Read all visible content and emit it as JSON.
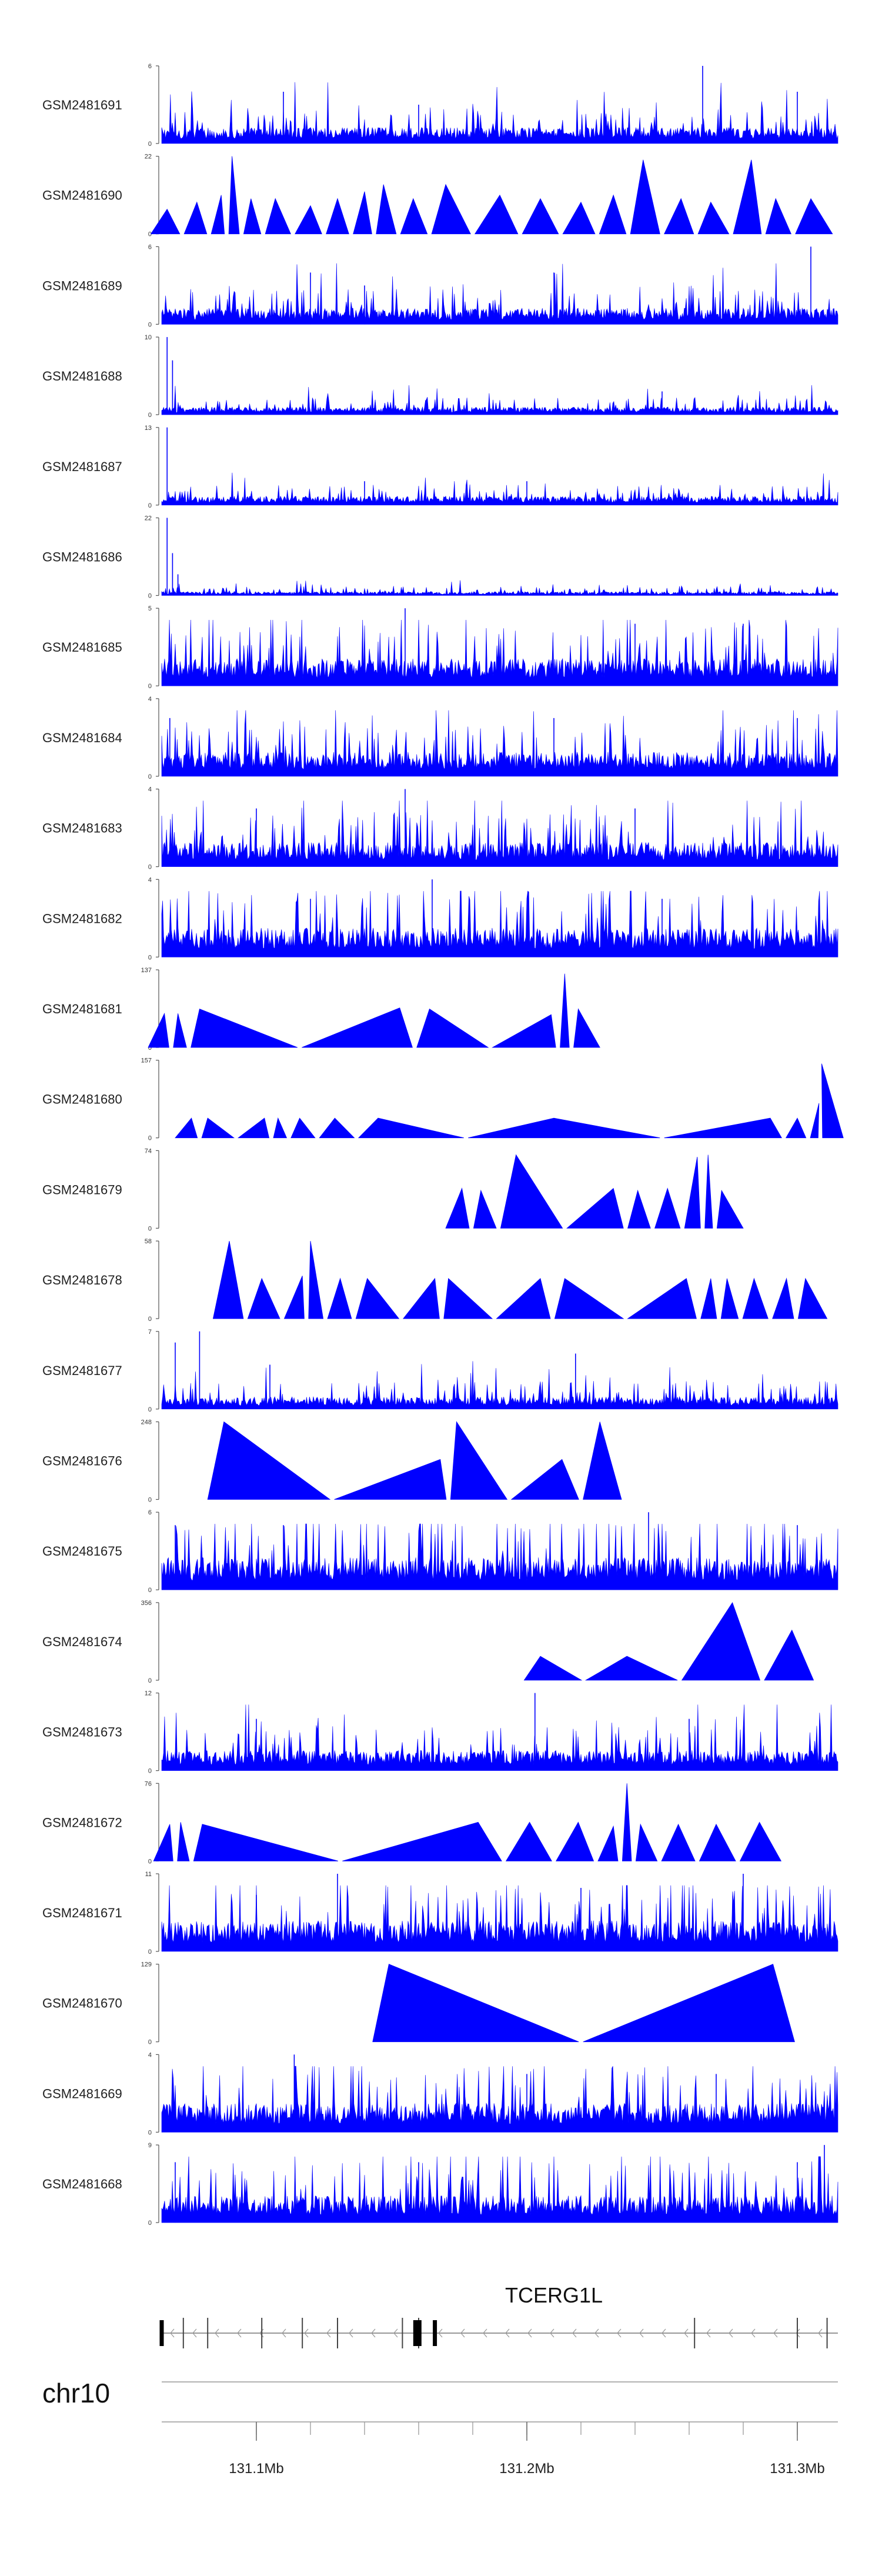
{
  "chart_data": {
    "type": "area",
    "title": "",
    "xlabel": "",
    "chromosome": "chr10",
    "xlim": [
      131.065,
      131.315
    ],
    "axis_ticks": [
      131.1,
      131.2,
      131.3
    ],
    "axis_tick_labels": [
      "131.1Mb",
      "131.2Mb",
      "131.3Mb"
    ],
    "color": "#0000ff",
    "gene": {
      "name": "TCERG1L",
      "strand": "-",
      "start": 131.065,
      "end": 131.315,
      "exons": [
        131.065,
        131.073,
        131.082,
        131.102,
        131.117,
        131.13,
        131.154,
        131.166,
        131.16,
        131.262,
        131.3,
        131.311
      ]
    },
    "tracks": [
      {
        "sample": "GSM2481691",
        "ymax": 6,
        "ylim_label": [
          "0",
          "6"
        ],
        "style": "dense",
        "base": 1.0,
        "peaks": [
          {
            "x": 131.265,
            "y": 6
          },
          {
            "x": 131.11,
            "y": 4
          },
          {
            "x": 131.3,
            "y": 4
          },
          {
            "x": 131.16,
            "y": 3
          }
        ]
      },
      {
        "sample": "GSM2481690",
        "ymax": 22,
        "ylim_label": [
          "0",
          "22"
        ],
        "style": "triangles",
        "peaks": [
          {
            "x": 131.067,
            "y": 7
          },
          {
            "x": 131.078,
            "y": 9
          },
          {
            "x": 131.087,
            "y": 11
          },
          {
            "x": 131.091,
            "y": 22
          },
          {
            "x": 131.098,
            "y": 10
          },
          {
            "x": 131.107,
            "y": 10
          },
          {
            "x": 131.12,
            "y": 8
          },
          {
            "x": 131.13,
            "y": 10
          },
          {
            "x": 131.14,
            "y": 12
          },
          {
            "x": 131.147,
            "y": 14
          },
          {
            "x": 131.158,
            "y": 10
          },
          {
            "x": 131.17,
            "y": 14
          },
          {
            "x": 131.19,
            "y": 11
          },
          {
            "x": 131.205,
            "y": 10
          },
          {
            "x": 131.22,
            "y": 9
          },
          {
            "x": 131.232,
            "y": 11
          },
          {
            "x": 131.243,
            "y": 21
          },
          {
            "x": 131.257,
            "y": 10
          },
          {
            "x": 131.268,
            "y": 9
          },
          {
            "x": 131.283,
            "y": 21
          },
          {
            "x": 131.292,
            "y": 10
          },
          {
            "x": 131.305,
            "y": 10
          }
        ]
      },
      {
        "sample": "GSM2481689",
        "ymax": 6,
        "ylim_label": [
          "0",
          "6"
        ],
        "style": "dense",
        "base": 1.0,
        "peaks": [
          {
            "x": 131.305,
            "y": 6
          },
          {
            "x": 131.12,
            "y": 4
          },
          {
            "x": 131.21,
            "y": 4
          },
          {
            "x": 131.14,
            "y": 3
          }
        ]
      },
      {
        "sample": "GSM2481688",
        "ymax": 10,
        "ylim_label": [
          "0",
          "10"
        ],
        "style": "dense",
        "base": 0.8,
        "peaks": [
          {
            "x": 131.067,
            "y": 10
          },
          {
            "x": 131.069,
            "y": 7
          },
          {
            "x": 131.25,
            "y": 3
          }
        ]
      },
      {
        "sample": "GSM2481687",
        "ymax": 13,
        "ylim_label": [
          "0",
          "13"
        ],
        "style": "dense",
        "base": 1.2,
        "peaks": [
          {
            "x": 131.067,
            "y": 13
          },
          {
            "x": 131.14,
            "y": 4
          },
          {
            "x": 131.2,
            "y": 4
          }
        ]
      },
      {
        "sample": "GSM2481686",
        "ymax": 22,
        "ylim_label": [
          "0",
          "22"
        ],
        "style": "dense",
        "base": 0.9,
        "peaks": [
          {
            "x": 131.067,
            "y": 22
          },
          {
            "x": 131.069,
            "y": 12
          },
          {
            "x": 131.071,
            "y": 6
          }
        ]
      },
      {
        "sample": "GSM2481685",
        "ymax": 5,
        "ylim_label": [
          "0",
          "5"
        ],
        "style": "dense",
        "base": 1.4,
        "peaks": [
          {
            "x": 131.155,
            "y": 5
          },
          {
            "x": 131.24,
            "y": 4
          },
          {
            "x": 131.28,
            "y": 4
          }
        ]
      },
      {
        "sample": "GSM2481684",
        "ymax": 4,
        "ylim_label": [
          "0",
          "4"
        ],
        "style": "dense",
        "base": 1.0,
        "peaks": [
          {
            "x": 131.068,
            "y": 3
          },
          {
            "x": 131.21,
            "y": 3
          },
          {
            "x": 131.3,
            "y": 3
          }
        ]
      },
      {
        "sample": "GSM2481683",
        "ymax": 4,
        "ylim_label": [
          "0",
          "4"
        ],
        "style": "dense",
        "base": 1.0,
        "peaks": [
          {
            "x": 131.155,
            "y": 4
          },
          {
            "x": 131.24,
            "y": 3
          },
          {
            "x": 131.1,
            "y": 3
          }
        ]
      },
      {
        "sample": "GSM2481682",
        "ymax": 4,
        "ylim_label": [
          "0",
          "4"
        ],
        "style": "dense",
        "base": 1.2,
        "peaks": [
          {
            "x": 131.165,
            "y": 4
          },
          {
            "x": 131.12,
            "y": 3
          },
          {
            "x": 131.25,
            "y": 3
          }
        ]
      },
      {
        "sample": "GSM2481681",
        "ymax": 137,
        "ylim_label": [
          "0",
          "137"
        ],
        "style": "triangles",
        "peaks": [
          {
            "x": 131.066,
            "y": 60
          },
          {
            "x": 131.071,
            "y": 60
          },
          {
            "x": 131.079,
            "y": 68
          },
          {
            "x": 131.153,
            "y": 70
          },
          {
            "x": 131.164,
            "y": 68
          },
          {
            "x": 131.209,
            "y": 58
          },
          {
            "x": 131.214,
            "y": 130
          },
          {
            "x": 131.219,
            "y": 68
          }
        ]
      },
      {
        "sample": "GSM2481680",
        "ymax": 157,
        "ylim_label": [
          "0",
          "157"
        ],
        "style": "triangles",
        "peaks": [
          {
            "x": 131.076,
            "y": 40
          },
          {
            "x": 131.082,
            "y": 40
          },
          {
            "x": 131.103,
            "y": 40
          },
          {
            "x": 131.108,
            "y": 40
          },
          {
            "x": 131.116,
            "y": 40
          },
          {
            "x": 131.129,
            "y": 40
          },
          {
            "x": 131.145,
            "y": 40
          },
          {
            "x": 131.21,
            "y": 40
          },
          {
            "x": 131.29,
            "y": 40
          },
          {
            "x": 131.3,
            "y": 40
          },
          {
            "x": 131.308,
            "y": 70
          },
          {
            "x": 131.309,
            "y": 150
          }
        ]
      },
      {
        "sample": "GSM2481679",
        "ymax": 74,
        "ylim_label": [
          "0",
          "74"
        ],
        "style": "triangles",
        "peaks": [
          {
            "x": 131.176,
            "y": 38
          },
          {
            "x": 131.183,
            "y": 36
          },
          {
            "x": 131.196,
            "y": 70
          },
          {
            "x": 131.232,
            "y": 38
          },
          {
            "x": 131.241,
            "y": 36
          },
          {
            "x": 131.252,
            "y": 38
          },
          {
            "x": 131.263,
            "y": 68
          },
          {
            "x": 131.267,
            "y": 70
          },
          {
            "x": 131.272,
            "y": 36
          }
        ]
      },
      {
        "sample": "GSM2481678",
        "ymax": 58,
        "ylim_label": [
          "0",
          "58"
        ],
        "style": "triangles",
        "peaks": [
          {
            "x": 131.09,
            "y": 58
          },
          {
            "x": 131.102,
            "y": 30
          },
          {
            "x": 131.117,
            "y": 32
          },
          {
            "x": 131.12,
            "y": 58
          },
          {
            "x": 131.131,
            "y": 30
          },
          {
            "x": 131.141,
            "y": 30
          },
          {
            "x": 131.166,
            "y": 30
          },
          {
            "x": 131.171,
            "y": 30
          },
          {
            "x": 131.205,
            "y": 30
          },
          {
            "x": 131.214,
            "y": 30
          },
          {
            "x": 131.259,
            "y": 30
          },
          {
            "x": 131.268,
            "y": 30
          },
          {
            "x": 131.274,
            "y": 30
          },
          {
            "x": 131.284,
            "y": 30
          },
          {
            "x": 131.296,
            "y": 30
          },
          {
            "x": 131.303,
            "y": 30
          }
        ]
      },
      {
        "sample": "GSM2481677",
        "ymax": 7,
        "ylim_label": [
          "0",
          "7"
        ],
        "style": "dense",
        "base": 0.9,
        "peaks": [
          {
            "x": 131.07,
            "y": 6
          },
          {
            "x": 131.079,
            "y": 7
          },
          {
            "x": 131.105,
            "y": 4
          },
          {
            "x": 131.218,
            "y": 5
          }
        ]
      },
      {
        "sample": "GSM2481676",
        "ymax": 248,
        "ylim_label": [
          "0",
          "248"
        ],
        "style": "triangles",
        "peaks": [
          {
            "x": 131.088,
            "y": 248
          },
          {
            "x": 131.168,
            "y": 128
          },
          {
            "x": 131.174,
            "y": 248
          },
          {
            "x": 131.213,
            "y": 128
          },
          {
            "x": 131.227,
            "y": 248
          }
        ]
      },
      {
        "sample": "GSM2481675",
        "ymax": 6,
        "ylim_label": [
          "0",
          "6"
        ],
        "style": "dense",
        "base": 2.0,
        "peaks": [
          {
            "x": 131.07,
            "y": 5
          },
          {
            "x": 131.11,
            "y": 5
          },
          {
            "x": 131.245,
            "y": 6
          },
          {
            "x": 131.3,
            "y": 5
          }
        ]
      },
      {
        "sample": "GSM2481674",
        "ymax": 356,
        "ylim_label": [
          "0",
          "356"
        ],
        "style": "triangles",
        "peaks": [
          {
            "x": 131.205,
            "y": 110
          },
          {
            "x": 131.237,
            "y": 110
          },
          {
            "x": 131.276,
            "y": 356
          },
          {
            "x": 131.298,
            "y": 230
          }
        ]
      },
      {
        "sample": "GSM2481673",
        "ymax": 12,
        "ylim_label": [
          "0",
          "12"
        ],
        "style": "dense",
        "base": 2.5,
        "peaks": [
          {
            "x": 131.203,
            "y": 12
          },
          {
            "x": 131.1,
            "y": 8
          },
          {
            "x": 131.26,
            "y": 8
          }
        ]
      },
      {
        "sample": "GSM2481672",
        "ymax": 76,
        "ylim_label": [
          "0",
          "76"
        ],
        "style": "triangles",
        "peaks": [
          {
            "x": 131.068,
            "y": 36
          },
          {
            "x": 131.072,
            "y": 38
          },
          {
            "x": 131.08,
            "y": 36
          },
          {
            "x": 131.182,
            "y": 38
          },
          {
            "x": 131.201,
            "y": 38
          },
          {
            "x": 131.219,
            "y": 38
          },
          {
            "x": 131.232,
            "y": 34
          },
          {
            "x": 131.237,
            "y": 76
          },
          {
            "x": 131.242,
            "y": 36
          },
          {
            "x": 131.256,
            "y": 36
          },
          {
            "x": 131.27,
            "y": 36
          },
          {
            "x": 131.286,
            "y": 38
          }
        ]
      },
      {
        "sample": "GSM2481671",
        "ymax": 11,
        "ylim_label": [
          "0",
          "11"
        ],
        "style": "dense",
        "base": 3.5,
        "peaks": [
          {
            "x": 131.13,
            "y": 11
          },
          {
            "x": 131.22,
            "y": 9
          },
          {
            "x": 131.28,
            "y": 11
          },
          {
            "x": 131.1,
            "y": 8
          }
        ]
      },
      {
        "sample": "GSM2481670",
        "ymax": 129,
        "ylim_label": [
          "0",
          "129"
        ],
        "style": "triangles",
        "peaks": [
          {
            "x": 131.149,
            "y": 129
          },
          {
            "x": 131.291,
            "y": 129
          }
        ]
      },
      {
        "sample": "GSM2481669",
        "ymax": 4,
        "ylim_label": [
          "0",
          "4"
        ],
        "style": "dense",
        "base": 1.2,
        "peaks": [
          {
            "x": 131.114,
            "y": 4
          },
          {
            "x": 131.27,
            "y": 3
          },
          {
            "x": 131.2,
            "y": 3
          }
        ]
      },
      {
        "sample": "GSM2481668",
        "ymax": 9,
        "ylim_label": [
          "0",
          "9"
        ],
        "style": "dense",
        "base": 2.5,
        "peaks": [
          {
            "x": 131.07,
            "y": 7
          },
          {
            "x": 131.16,
            "y": 7
          },
          {
            "x": 131.31,
            "y": 9
          },
          {
            "x": 131.3,
            "y": 7
          }
        ]
      }
    ]
  }
}
